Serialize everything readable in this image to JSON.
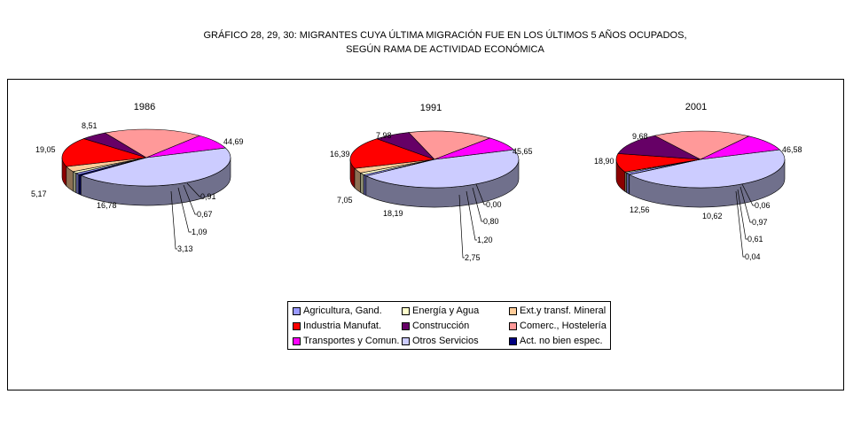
{
  "title_lines": [
    "GRÁFICO 28, 29, 30: MIGRANTES CUYA ÚLTIMA MIGRACIÓN FUE EN LOS ÚLTIMOS 5 AÑOS OCUPADOS,",
    "SEGÚN RAMA DE ACTIVIDAD ECONÓMICA"
  ],
  "colors": {
    "Agricultura, Gand.": "#9999ff",
    "Energía y Agua": "#ffffcc",
    "Ext.y transf. Mineral": "#ffcc99",
    "Industria Manufat.": "#ff0000",
    "Construcción": "#660066",
    "Comerc., Hostelería": "#ff9999",
    "Transportes y Comun.": "#ff00ff",
    "Otros Servicios": "#ccccff",
    "Act. no bien espec.": "#000080"
  },
  "legend": [
    "Agricultura, Gand.",
    "Energía y Agua",
    "Ext.y transf. Mineral",
    "Industria Manufat.",
    "Construcción",
    "Comerc., Hostelería",
    "Transportes y Comun.",
    "Otros Servicios",
    "Act. no bien espec."
  ],
  "chart_data": [
    {
      "type": "pie",
      "title": "1986",
      "categories": [
        "Agricultura, Gand.",
        "Energía y Agua",
        "Ext.y transf. Mineral",
        "Industria Manufat.",
        "Construcción",
        "Comerc., Hostelería",
        "Transportes y Comun.",
        "Otros Servicios",
        "Act. no bien espec."
      ],
      "values": [
        0.91,
        1.09,
        3.13,
        16.78,
        5.17,
        19.05,
        8.51,
        44.69,
        0.67
      ],
      "labels": [
        "0,91",
        "1,09",
        "3,13",
        "16,78",
        "5,17",
        "19,05",
        "8,51",
        "44,69",
        "0,67"
      ]
    },
    {
      "type": "pie",
      "title": "1991",
      "categories": [
        "Agricultura, Gand.",
        "Energía y Agua",
        "Ext.y transf. Mineral",
        "Industria Manufat.",
        "Construcción",
        "Comerc., Hostelería",
        "Transportes y Comun.",
        "Otros Servicios",
        "Act. no bien espec."
      ],
      "values": [
        0.8,
        1.2,
        2.75,
        18.19,
        7.05,
        16.39,
        7.98,
        45.65,
        0.0
      ],
      "labels": [
        "0,80",
        "1,20",
        "2,75",
        "18,19",
        "7,05",
        "16,39",
        "7,98",
        "45,65",
        "0,00"
      ]
    },
    {
      "type": "pie",
      "title": "2001",
      "categories": [
        "Agricultura, Gand.",
        "Energía y Agua",
        "Ext.y transf. Mineral",
        "Industria Manufat.",
        "Construcción",
        "Comerc., Hostelería",
        "Transportes y Comun.",
        "Otros Servicios",
        "Act. no bien espec."
      ],
      "values": [
        0.97,
        0.61,
        0.04,
        10.62,
        12.56,
        18.9,
        9.68,
        46.58,
        0.06
      ],
      "labels": [
        "0,97",
        "0,61",
        "0,04",
        "10,62",
        "12,56",
        "18,90",
        "9,68",
        "46,58",
        "0,06"
      ]
    }
  ]
}
